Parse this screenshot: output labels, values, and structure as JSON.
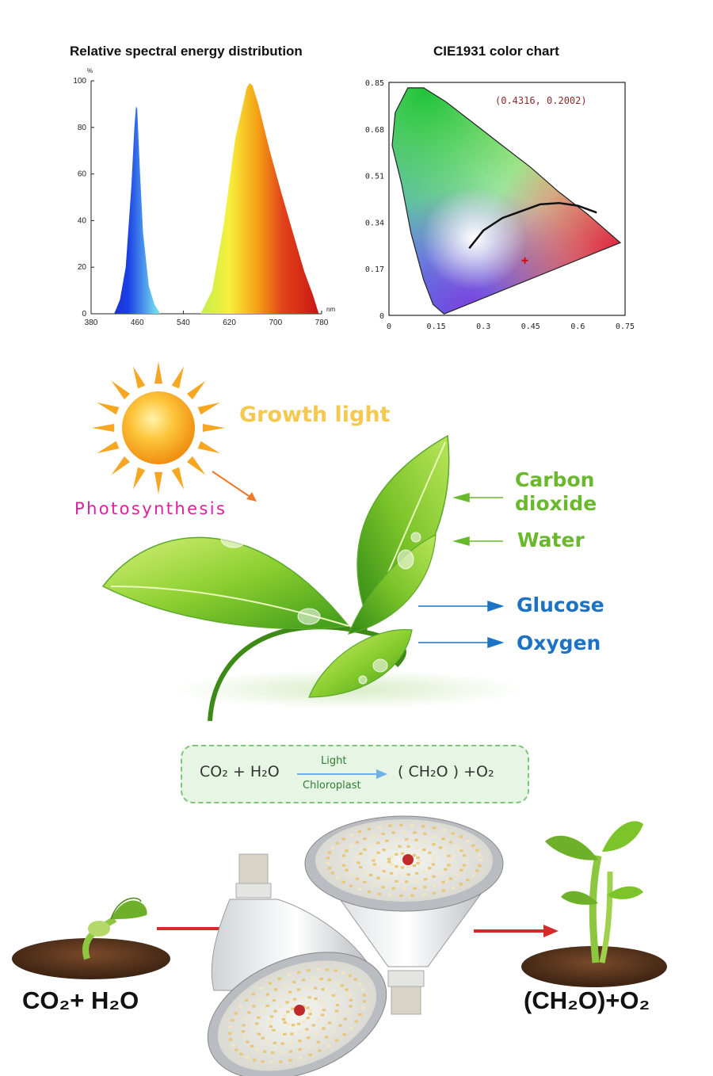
{
  "chart_data": [
    {
      "type": "area",
      "title": "Relative spectral energy distribution",
      "xlabel": "nm",
      "ylabel": "%",
      "xlim": [
        380,
        780
      ],
      "ylim": [
        0,
        100
      ],
      "x_ticks": [
        "380",
        "460",
        "540",
        "620",
        "700",
        "780"
      ],
      "y_ticks": [
        "0",
        "20",
        "40",
        "60",
        "80",
        "100"
      ],
      "series": [
        {
          "x": [
            420,
            430,
            440,
            450,
            455,
            458,
            460,
            465,
            470,
            480,
            490,
            500
          ],
          "values": [
            0,
            6,
            20,
            55,
            80,
            89,
            88,
            60,
            35,
            12,
            4,
            0
          ]
        },
        {
          "x": [
            570,
            590,
            610,
            630,
            650,
            655,
            660,
            670,
            690,
            710,
            730,
            750,
            765,
            775
          ],
          "values": [
            0,
            10,
            38,
            75,
            97,
            99,
            98,
            90,
            70,
            52,
            35,
            18,
            8,
            0
          ]
        }
      ],
      "grid": false
    },
    {
      "type": "scatter",
      "title": "CIE1931 color chart",
      "xlim": [
        0,
        0.75
      ],
      "ylim": [
        0,
        0.85
      ],
      "x_ticks": [
        "0",
        "0.15",
        "0.3",
        "0.45",
        "0.6",
        "0.75"
      ],
      "y_ticks": [
        "0",
        "0.17",
        "0.34",
        "0.51",
        "0.68",
        "0.85"
      ],
      "point": {
        "x": 0.4316,
        "y": 0.2002,
        "label": "(0.4316, 0.2002)"
      },
      "grid": false
    }
  ],
  "diagram": {
    "growth_light": "Growth light",
    "photosynthesis": "Photosynthesis",
    "inputs": [
      "Carbon dioxide",
      "Water"
    ],
    "carbon_line1": "Carbon",
    "carbon_line2": "dioxide",
    "water": "Water",
    "glucose": "Glucose",
    "oxygen": "Oxygen"
  },
  "formula": {
    "reactants": "CO₂ + H₂O",
    "condition_top": "Light",
    "condition_bottom": "Chloroplast",
    "products": "( CH₂O ) +O₂"
  },
  "bottom": {
    "left": "CO₂+ H₂O",
    "right": "(CH₂O)+O₂"
  },
  "colors": {
    "blue_peak": "#1a2fe0",
    "red_peak": "#d8221c",
    "growth_text": "#f5c850",
    "photo_text": "#e01e9c",
    "input_text": "#6ab82e",
    "output_text": "#1c73c4",
    "arrow_red": "#d42a2a"
  }
}
